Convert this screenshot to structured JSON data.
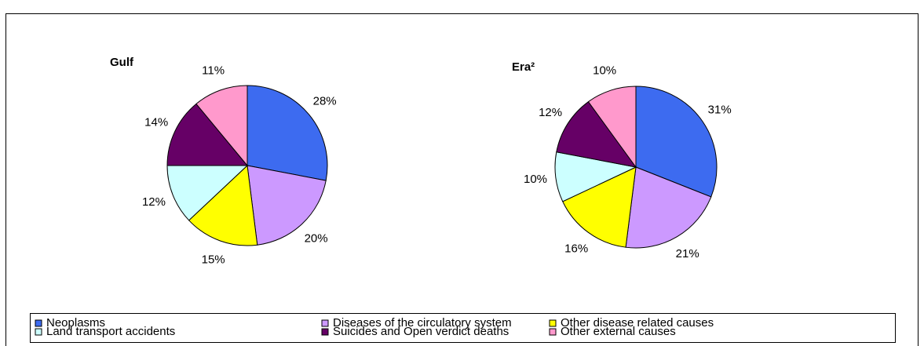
{
  "chart_data": [
    {
      "type": "pie",
      "title": "Gulf",
      "categories": [
        "Neoplasms",
        "Diseases of the circulatory system",
        "Other disease related causes",
        "Land transport accidents",
        "Suicides and Open verdict deaths",
        "Other external causes"
      ],
      "values": [
        28,
        20,
        15,
        12,
        14,
        11
      ],
      "value_labels": [
        "28%",
        "20%",
        "15%",
        "12%",
        "14%",
        "11%"
      ],
      "colors": [
        "#3d6bf0",
        "#cc99ff",
        "#ffff00",
        "#ccffff",
        "#660066",
        "#ff99cc"
      ]
    },
    {
      "type": "pie",
      "title": "Era²",
      "categories": [
        "Neoplasms",
        "Diseases of the circulatory system",
        "Other disease related causes",
        "Land transport accidents",
        "Suicides and Open verdict deaths",
        "Other external causes"
      ],
      "values": [
        31,
        21,
        16,
        10,
        12,
        10
      ],
      "value_labels": [
        "31%",
        "21%",
        "16%",
        "10%",
        "12%",
        "10%"
      ],
      "colors": [
        "#3d6bf0",
        "#cc99ff",
        "#ffff00",
        "#ccffff",
        "#660066",
        "#ff99cc"
      ]
    }
  ]
}
